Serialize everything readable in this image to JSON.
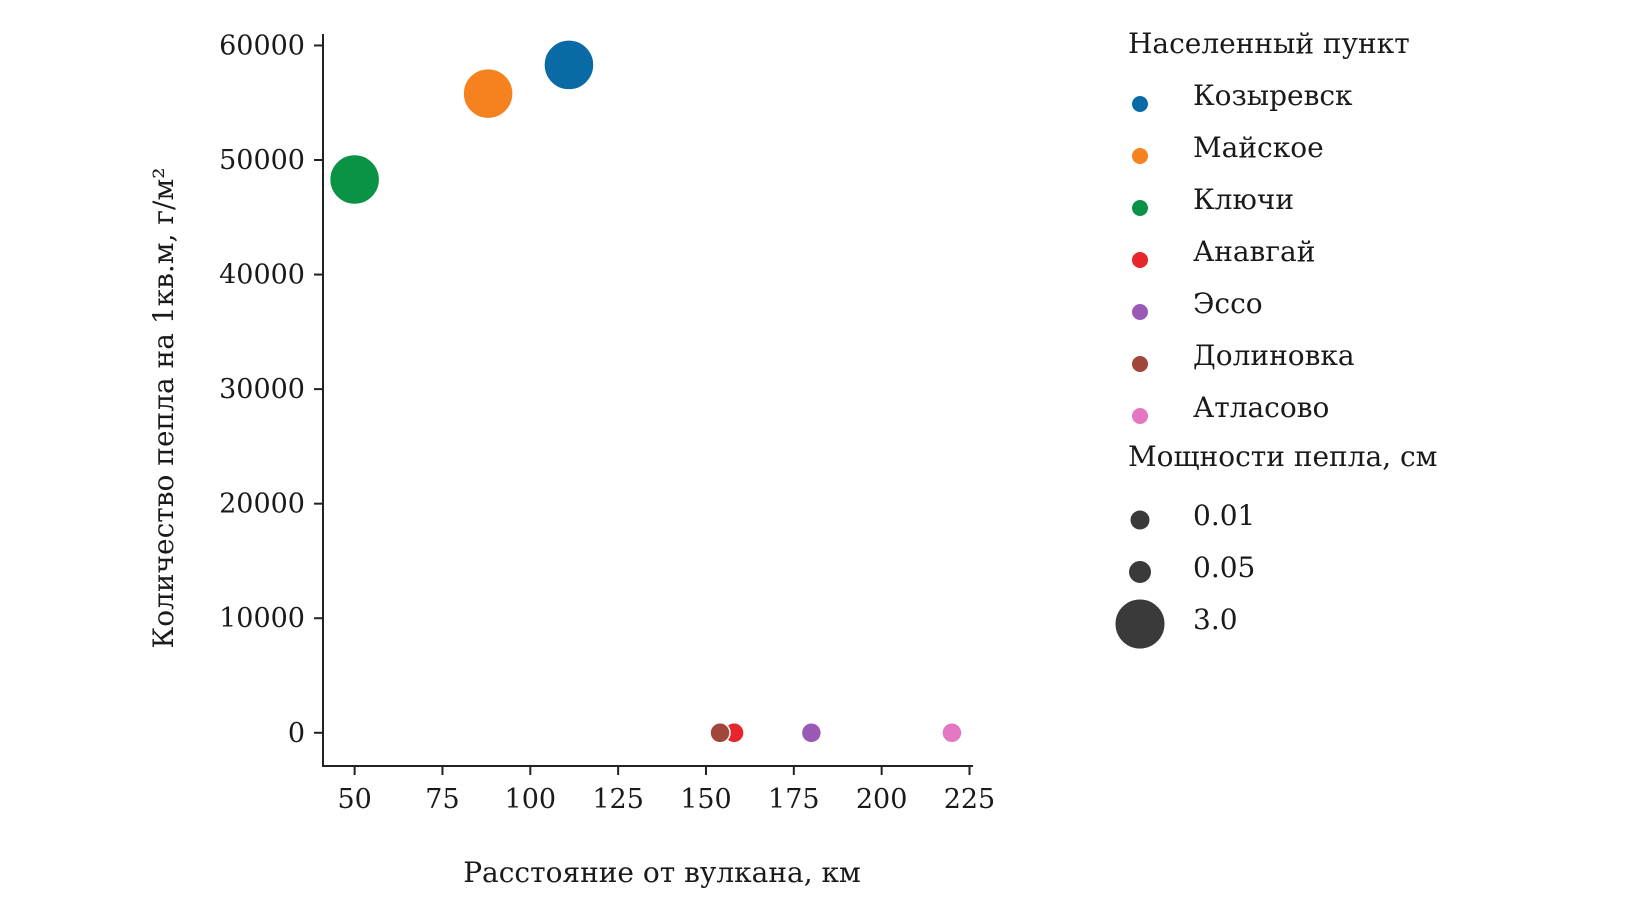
{
  "chart_data": {
    "type": "scatter",
    "xlabel": "Расстояние от вулкана, км",
    "ylabel": "Количество пепла на 1кв.м, г/м²",
    "xlim": [
      41,
      226
    ],
    "ylim": [
      -2900,
      61000
    ],
    "xticks": [
      50,
      75,
      100,
      125,
      150,
      175,
      200,
      225
    ],
    "yticks": [
      0,
      10000,
      20000,
      30000,
      40000,
      50000,
      60000
    ],
    "xtick_labels": [
      "50",
      "75",
      "100",
      "125",
      "150",
      "175",
      "200",
      "225"
    ],
    "ytick_labels": [
      "0",
      "10000",
      "20000",
      "30000",
      "40000",
      "50000",
      "60000"
    ],
    "grid": false,
    "legend_placement": "right-outside",
    "hue_legend_title": "Населенный пункт",
    "size_legend_title": "Мощности пепла, см",
    "series": [
      {
        "name": "Козыревск",
        "color": "#0a6aa6",
        "x": 111,
        "y": 58300,
        "thickness": 3.0
      },
      {
        "name": "Майское",
        "color": "#f5821f",
        "x": 88,
        "y": 55800,
        "thickness": 3.0
      },
      {
        "name": "Ключи",
        "color": "#0a9345",
        "x": 50,
        "y": 48300,
        "thickness": 3.0
      },
      {
        "name": "Анавгай",
        "color": "#e8252b",
        "x": 158,
        "y": 0,
        "thickness": 0.01
      },
      {
        "name": "Эссо",
        "color": "#9b59b6",
        "x": 180,
        "y": 0,
        "thickness": 0.01
      },
      {
        "name": "Долиновка",
        "color": "#a0463a",
        "x": 154,
        "y": 0,
        "thickness": 0.01
      },
      {
        "name": "Атласово",
        "color": "#e377c2",
        "x": 220,
        "y": 0,
        "thickness": 0.01
      }
    ],
    "size_legend": [
      {
        "label": "0.01",
        "value": 0.01
      },
      {
        "label": "0.05",
        "value": 0.05
      },
      {
        "label": "3.0",
        "value": 3.0
      }
    ],
    "size_legend_color": "#3a3a3a"
  }
}
